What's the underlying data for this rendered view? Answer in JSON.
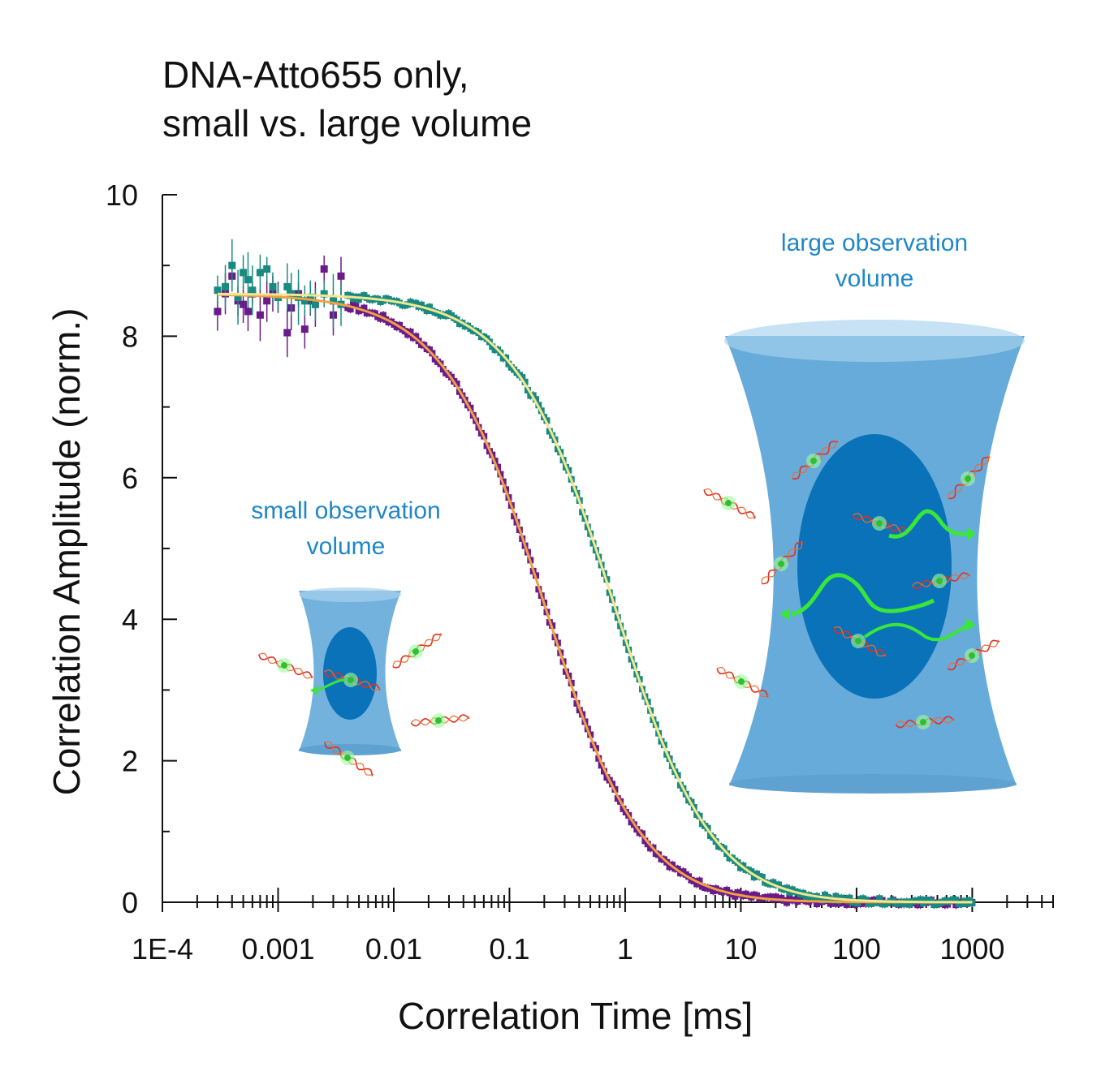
{
  "chart_data": {
    "type": "scatter",
    "title_lines": [
      "DNA-Atto655 only,",
      "small vs. large volume"
    ],
    "xlabel": "Correlation Time [ms]",
    "ylabel": "Correlation Amplitude (norm.)",
    "xscale": "log",
    "xlim": [
      0.0001,
      5000
    ],
    "ylim": [
      0,
      10
    ],
    "x_tick_labels": [
      "1E-4",
      "0.001",
      "0.01",
      "0.1",
      "1",
      "10",
      "100",
      "1000"
    ],
    "x_tick_values": [
      0.0001,
      0.001,
      0.01,
      0.1,
      1,
      10,
      100,
      1000
    ],
    "y_tick_labels": [
      "0",
      "2",
      "4",
      "6",
      "8",
      "10"
    ],
    "y_tick_values": [
      0,
      2,
      4,
      6,
      8,
      10
    ],
    "x_range_data": [
      0.0003,
      1000
    ],
    "series": [
      {
        "color": "#6a1b8a",
        "fit_color": "#f0a040",
        "amplitude": 8.6,
        "diffusion_time_ms": 0.2,
        "noisy_points": [
          [
            0.0003,
            8.35
          ],
          [
            0.00035,
            8.6
          ],
          [
            0.0004,
            8.85
          ],
          [
            0.00045,
            8.5
          ],
          [
            0.0005,
            8.45
          ],
          [
            0.00055,
            8.35
          ],
          [
            0.0006,
            8.6
          ],
          [
            0.0007,
            8.3
          ],
          [
            0.0008,
            8.5
          ],
          [
            0.0009,
            8.6
          ],
          [
            0.001,
            8.55
          ],
          [
            0.0012,
            8.05
          ],
          [
            0.0013,
            8.4
          ],
          [
            0.0015,
            8.6
          ],
          [
            0.0017,
            8.1
          ],
          [
            0.0019,
            8.5
          ],
          [
            0.0021,
            8.45
          ],
          [
            0.0025,
            8.95
          ],
          [
            0.003,
            8.3
          ],
          [
            0.0035,
            8.85
          ]
        ]
      },
      {
        "color": "#1a8a80",
        "fit_color": "#f0e890",
        "amplitude": 8.6,
        "diffusion_time_ms": 0.8,
        "noisy_points": [
          [
            0.0003,
            8.65
          ],
          [
            0.00035,
            8.7
          ],
          [
            0.0004,
            9.0
          ],
          [
            0.00045,
            8.55
          ],
          [
            0.0005,
            8.9
          ],
          [
            0.00055,
            8.8
          ],
          [
            0.0006,
            8.65
          ],
          [
            0.0007,
            8.9
          ],
          [
            0.0008,
            8.95
          ],
          [
            0.0009,
            8.7
          ],
          [
            0.001,
            8.55
          ],
          [
            0.0012,
            8.7
          ],
          [
            0.0013,
            8.6
          ],
          [
            0.0015,
            8.55
          ],
          [
            0.0017,
            8.5
          ],
          [
            0.0019,
            8.55
          ],
          [
            0.0021,
            8.45
          ],
          [
            0.0025,
            8.6
          ],
          [
            0.003,
            8.5
          ],
          [
            0.0035,
            8.45
          ]
        ]
      }
    ],
    "annotations": [
      {
        "text_lines": [
          "small observation",
          "volume"
        ],
        "color": "#1f87c8"
      },
      {
        "text_lines": [
          "large observation",
          "volume"
        ],
        "color": "#1f87c8"
      }
    ],
    "legend": "none",
    "grid": false
  }
}
